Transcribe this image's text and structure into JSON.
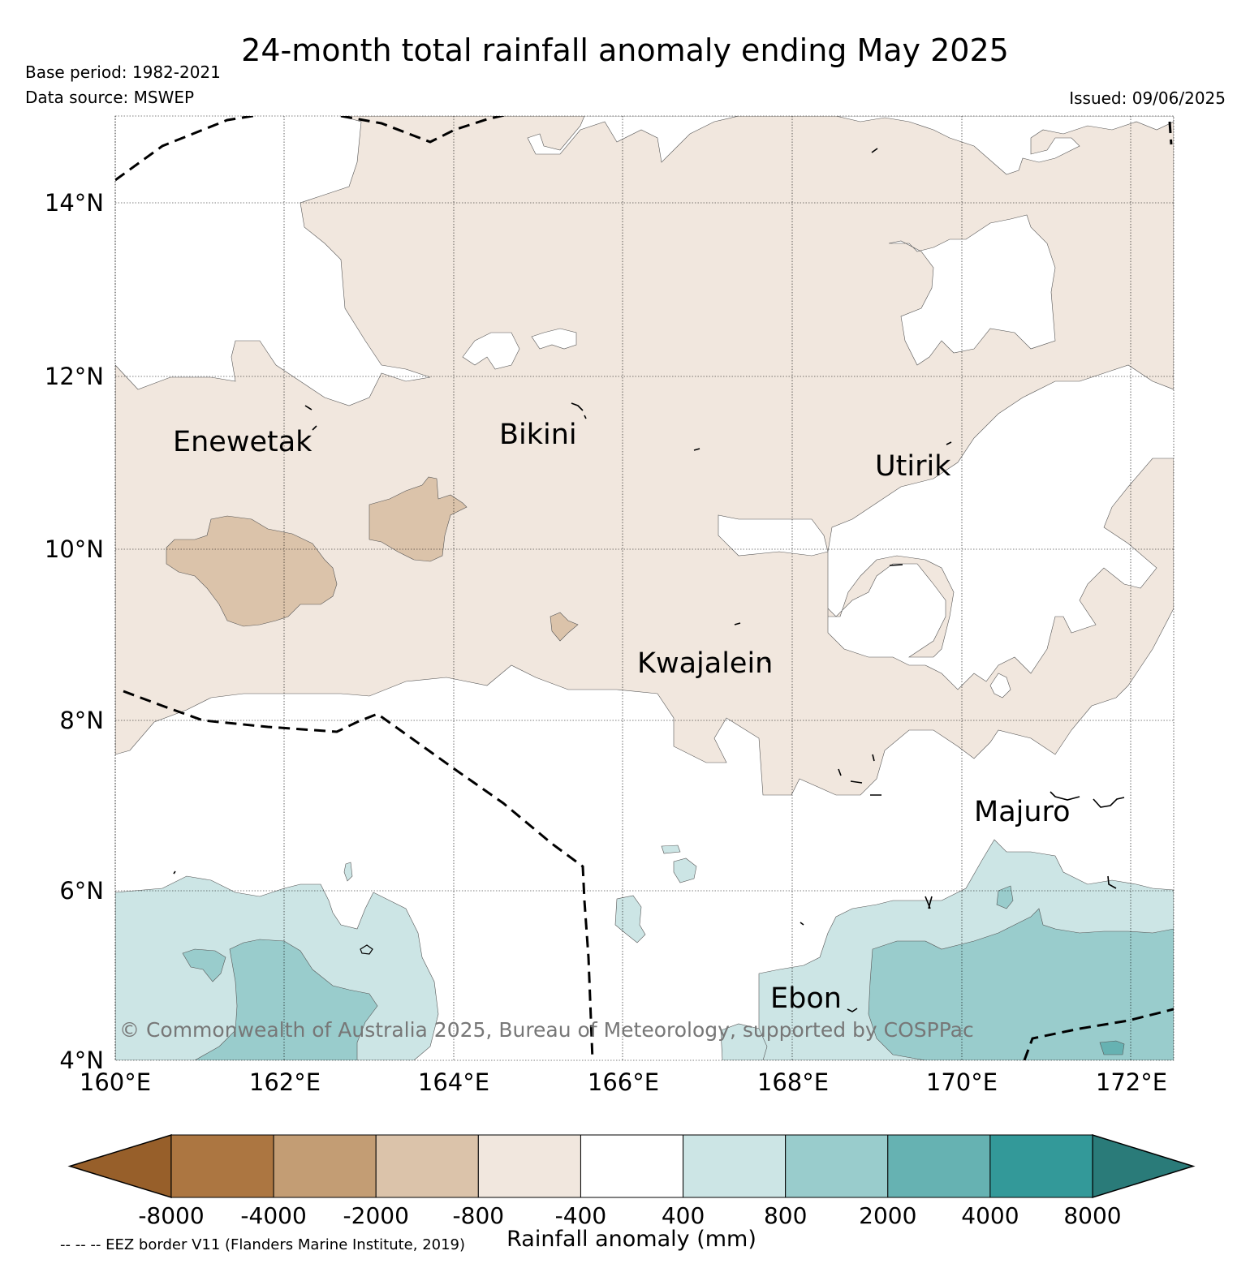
{
  "title": "24-month total rainfall anomaly ending May 2025",
  "meta": {
    "base_period": "Base period: 1982-2021",
    "data_source": "Data source: MSWEP",
    "issued": "Issued: 09/06/2025"
  },
  "map": {
    "lon_range": [
      160,
      172.5
    ],
    "lat_range": [
      4,
      15
    ],
    "lon_ticks": [
      {
        "value": 160,
        "label": "160°E"
      },
      {
        "value": 162,
        "label": "162°E"
      },
      {
        "value": 164,
        "label": "164°E"
      },
      {
        "value": 166,
        "label": "166°E"
      },
      {
        "value": 168,
        "label": "168°E"
      },
      {
        "value": 170,
        "label": "170°E"
      },
      {
        "value": 172,
        "label": "172°E"
      }
    ],
    "lat_ticks": [
      {
        "value": 14,
        "label": "14°N"
      },
      {
        "value": 12,
        "label": "12°N"
      },
      {
        "value": 10,
        "label": "10°N"
      },
      {
        "value": 8,
        "label": "8°N"
      },
      {
        "value": 6,
        "label": "6°N"
      },
      {
        "value": 4,
        "label": "4°N"
      }
    ],
    "places": [
      {
        "name": "Enewetak",
        "lon": 162.3,
        "lat": 11.3
      },
      {
        "name": "Bikini",
        "lon": 165.4,
        "lat": 11.4
      },
      {
        "name": "Utirik",
        "lon": 169.9,
        "lat": 11.0
      },
      {
        "name": "Kwajalein",
        "lon": 167.0,
        "lat": 8.7
      },
      {
        "name": "Majuro",
        "lon": 171.3,
        "lat": 6.9
      },
      {
        "name": "Ebon",
        "lon": 168.2,
        "lat": 4.7
      }
    ],
    "copyright": "© Commonwealth of Australia 2025, Bureau of Meteorology, supported by COSPPac",
    "gridlines": true
  },
  "colorbar": {
    "title": "Rainfall anomaly (mm)",
    "labels": [
      "-8000",
      "-4000",
      "-2000",
      "-800",
      "-400",
      "400",
      "800",
      "2000",
      "4000",
      "8000"
    ],
    "colors": [
      "#ac7641",
      "#c39d74",
      "#dbc3aa",
      "#f1e7de",
      "#ffffff",
      "#cce5e5",
      "#99cccc",
      "#66b2b2",
      "#339999"
    ],
    "extend_low_color": "#975f2a",
    "extend_high_color": "#2a7b79"
  },
  "footnote": "-- -- -- EEZ border V11 (Flanders Marine Institute, 2019)"
}
